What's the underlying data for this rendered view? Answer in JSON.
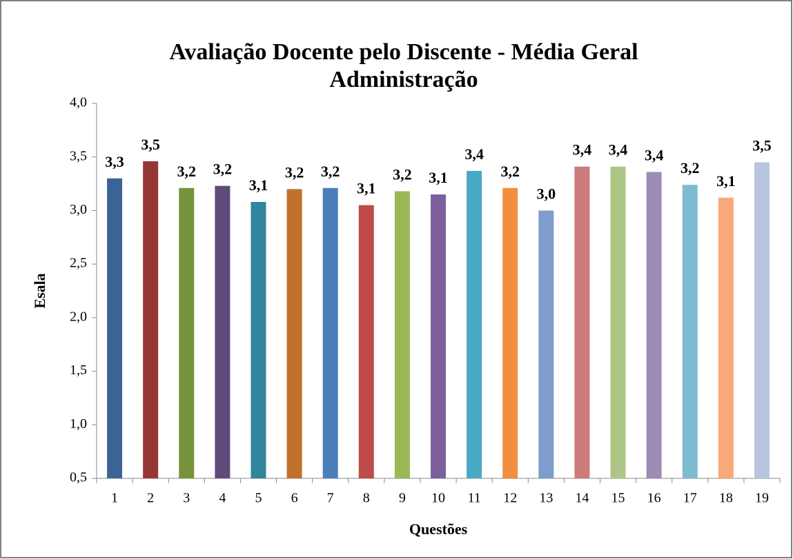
{
  "chart_data": {
    "type": "bar",
    "title": "Avaliação Docente pelo Discente - Média Geral",
    "subtitle": "Administração",
    "y_label": "Esala",
    "x_label": "Questões",
    "categories": [
      "1",
      "2",
      "3",
      "4",
      "5",
      "6",
      "7",
      "8",
      "9",
      "10",
      "11",
      "12",
      "13",
      "14",
      "15",
      "16",
      "17",
      "18",
      "19"
    ],
    "values": [
      3.3,
      3.46,
      3.21,
      3.23,
      3.08,
      3.2,
      3.21,
      3.05,
      3.18,
      3.15,
      3.37,
      3.21,
      3.0,
      3.41,
      3.41,
      3.36,
      3.24,
      3.12,
      3.45
    ],
    "value_labels": [
      "3,3",
      "3,5",
      "3,2",
      "3,2",
      "3,1",
      "3,2",
      "3,2",
      "3,1",
      "3,2",
      "3,1",
      "3,4",
      "3,2",
      "3,0",
      "3,4",
      "3,4",
      "3,4",
      "3,2",
      "3,1",
      "3,5"
    ],
    "colors": [
      "#3b6496",
      "#953735",
      "#77933c",
      "#604a7b",
      "#31859c",
      "#c0722d",
      "#4a7ebb",
      "#be4b48",
      "#98b954",
      "#7d5fa0",
      "#46aac5",
      "#f28f3e",
      "#7f9dcc",
      "#cd7b7a",
      "#adc686",
      "#9d8cb6",
      "#7fbbd0",
      "#f9a878",
      "#b7c5de"
    ],
    "ylim": [
      0.5,
      4.0
    ],
    "yticks": [
      {
        "value": 0.5,
        "label": "0,5"
      },
      {
        "value": 1.0,
        "label": "1,0"
      },
      {
        "value": 1.5,
        "label": "1,5"
      },
      {
        "value": 2.0,
        "label": "2,0"
      },
      {
        "value": 2.5,
        "label": "2,5"
      },
      {
        "value": 3.0,
        "label": "3,0"
      },
      {
        "value": 3.5,
        "label": "3,5"
      },
      {
        "value": 4.0,
        "label": "4,0"
      }
    ],
    "grid": false
  }
}
